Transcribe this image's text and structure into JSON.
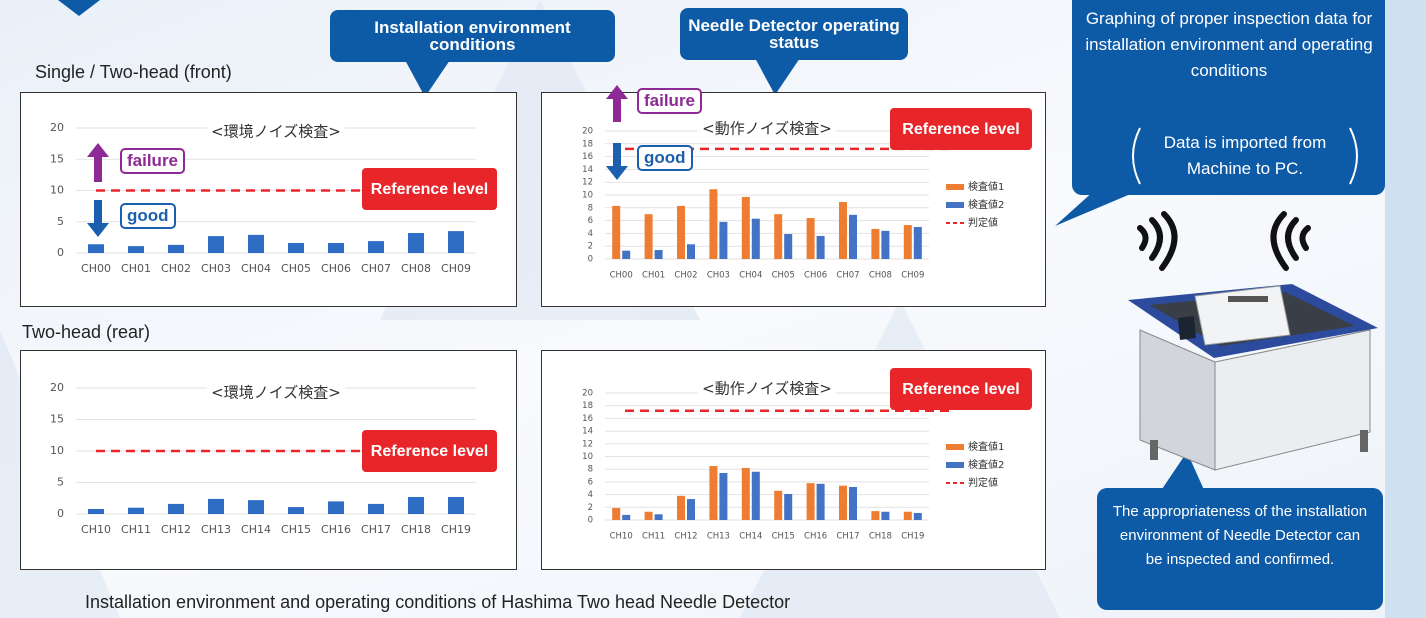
{
  "section_labels": [
    "Single / Two-head (front)",
    "Two-head (rear)"
  ],
  "callouts": [
    "Installation environment conditions",
    "Needle Detector operating status"
  ],
  "side_panel": {
    "heading": "Graphing of proper inspection data for installation environment and operating conditions",
    "note": "Data is imported from Machine to PC.",
    "footer": "The appropriateness of the installation environment of Needle Detector can be inspected and confirmed."
  },
  "caption": "Installation environment and operating conditions of Hashima Two head Needle Detector",
  "chart_data": [
    {
      "type": "bar",
      "title": "<環境ノイズ検査>",
      "categories": [
        "CH00",
        "CH01",
        "CH02",
        "CH03",
        "CH04",
        "CH05",
        "CH06",
        "CH07",
        "CH08",
        "CH09"
      ],
      "values": [
        1.4,
        1.1,
        1.3,
        2.7,
        2.9,
        1.6,
        1.6,
        1.9,
        3.2,
        3.5
      ],
      "color": "#2f6cc4",
      "ylim": [
        0,
        20
      ],
      "yticks": [
        0,
        5,
        10,
        15,
        20
      ],
      "grid": true,
      "reference_line": {
        "value": 10,
        "color": "#e8262a"
      },
      "annotations": [
        {
          "text": "failure",
          "color": "#8e2a95"
        },
        {
          "text": "good",
          "color": "#1c5fae"
        },
        {
          "text": "Reference level",
          "color": "#e8262a"
        }
      ]
    },
    {
      "type": "bar",
      "title": "<動作ノイズ検査>",
      "categories": [
        "CH00",
        "CH01",
        "CH02",
        "CH03",
        "CH04",
        "CH05",
        "CH06",
        "CH07",
        "CH08",
        "CH09"
      ],
      "series": [
        {
          "name": "検査値1",
          "color": "#ed7d31",
          "values": [
            8.3,
            7.0,
            8.3,
            10.9,
            9.7,
            7.0,
            6.4,
            8.9,
            4.7,
            5.3
          ]
        },
        {
          "name": "検査値2",
          "color": "#4472c4",
          "values": [
            1.3,
            1.4,
            2.3,
            5.8,
            6.3,
            3.9,
            3.6,
            6.9,
            4.4,
            5.0
          ]
        }
      ],
      "ylim": [
        0,
        20
      ],
      "yticks": [
        0,
        2,
        4,
        6,
        8,
        10,
        12,
        14,
        16,
        18,
        20
      ],
      "grid": true,
      "reference_line": {
        "value": 17.2,
        "color": "#e8262a",
        "name": "判定値"
      },
      "annotations": [
        {
          "text": "failure",
          "color": "#8e2a95"
        },
        {
          "text": "good",
          "color": "#1c5fae"
        },
        {
          "text": "Reference level",
          "color": "#e8262a"
        }
      ]
    },
    {
      "type": "bar",
      "title": "<環境ノイズ検査>",
      "categories": [
        "CH10",
        "CH11",
        "CH12",
        "CH13",
        "CH14",
        "CH15",
        "CH16",
        "CH17",
        "CH18",
        "CH19"
      ],
      "values": [
        0.8,
        1.0,
        1.6,
        2.4,
        2.2,
        1.1,
        2.0,
        1.6,
        2.7,
        2.7
      ],
      "color": "#2f6cc4",
      "ylim": [
        0,
        20
      ],
      "yticks": [
        0,
        5,
        10,
        15,
        20
      ],
      "grid": true,
      "reference_line": {
        "value": 10,
        "color": "#e8262a"
      },
      "annotations": [
        {
          "text": "Reference level",
          "color": "#e8262a"
        }
      ]
    },
    {
      "type": "bar",
      "title": "<動作ノイズ検査>",
      "categories": [
        "CH10",
        "CH11",
        "CH12",
        "CH13",
        "CH14",
        "CH15",
        "CH16",
        "CH17",
        "CH18",
        "CH19"
      ],
      "series": [
        {
          "name": "検査値1",
          "color": "#ed7d31",
          "values": [
            1.9,
            1.3,
            3.8,
            8.5,
            8.2,
            4.6,
            5.8,
            5.4,
            1.4,
            1.3
          ]
        },
        {
          "name": "検査値2",
          "color": "#4472c4",
          "values": [
            0.8,
            0.9,
            3.3,
            7.4,
            7.6,
            4.1,
            5.7,
            5.2,
            1.3,
            1.1
          ]
        }
      ],
      "ylim": [
        0,
        20
      ],
      "yticks": [
        0,
        2,
        4,
        6,
        8,
        10,
        12,
        14,
        16,
        18,
        20
      ],
      "grid": true,
      "reference_line": {
        "value": 17.2,
        "color": "#e8262a",
        "name": "判定値"
      },
      "annotations": [
        {
          "text": "Reference level",
          "color": "#e8262a"
        }
      ]
    }
  ]
}
